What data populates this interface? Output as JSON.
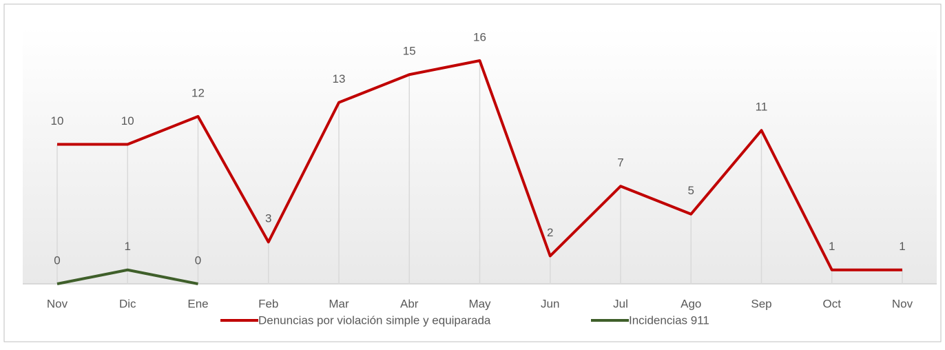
{
  "chart_data": {
    "type": "line",
    "categories": [
      "Nov",
      "Dic",
      "Ene",
      "Feb",
      "Mar",
      "Abr",
      "May",
      "Jun",
      "Jul",
      "Ago",
      "Sep",
      "Oct",
      "Nov"
    ],
    "series": [
      {
        "name": "Denuncias por violación simple y equiparada",
        "color": "#c00000",
        "values": [
          10,
          10,
          12,
          3,
          13,
          15,
          16,
          2,
          7,
          5,
          11,
          1,
          1
        ]
      },
      {
        "name": "Incidencias 911",
        "color": "#3f5f2a",
        "values": [
          0,
          1,
          0,
          null,
          null,
          null,
          null,
          null,
          null,
          null,
          null,
          null,
          null
        ]
      }
    ],
    "ylim": [
      0,
      16
    ],
    "drop_lines": true,
    "legend": "bottom"
  }
}
